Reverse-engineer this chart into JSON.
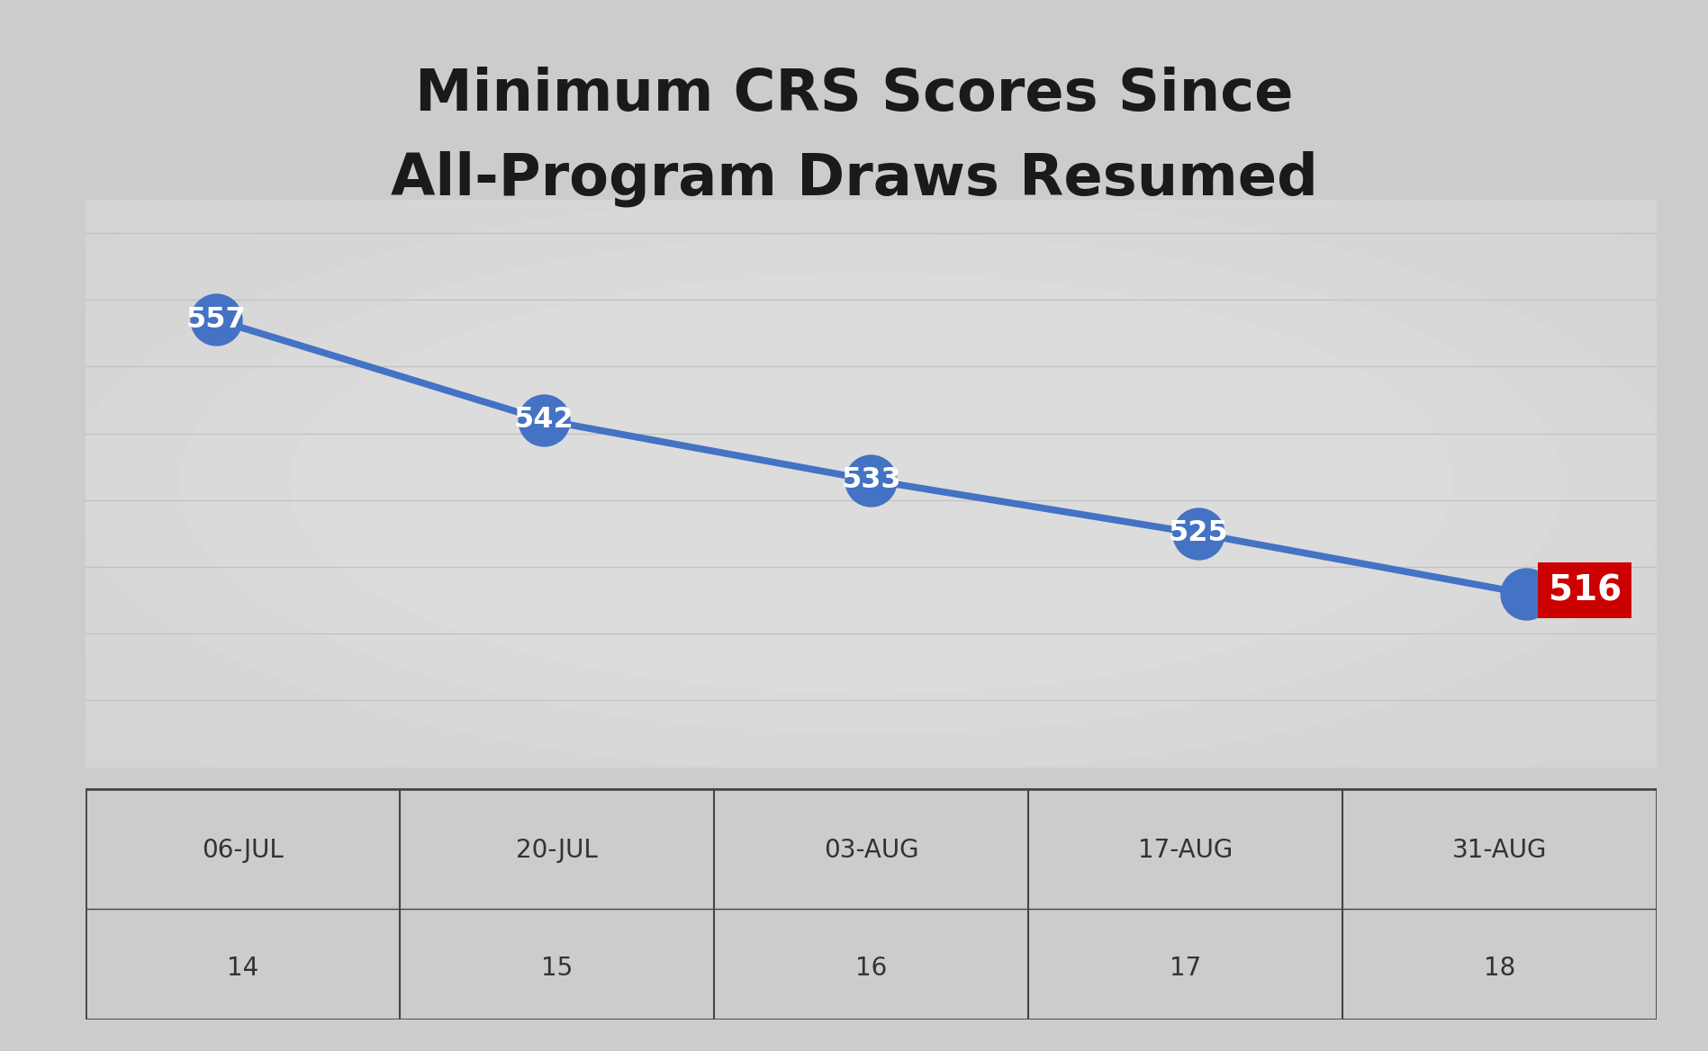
{
  "title_line1": "Minimum CRS Scores Since",
  "title_line2": "All-Program Draws Resumed",
  "x_labels": [
    "06-JUL",
    "20-JUL",
    "03-AUG",
    "17-AUG",
    "31-AUG"
  ],
  "x_sublabels": [
    "14",
    "15",
    "16",
    "17",
    "18"
  ],
  "y_values": [
    557,
    542,
    533,
    525,
    516
  ],
  "x_positions": [
    0,
    1,
    2,
    3,
    4
  ],
  "line_color": "#4472C4",
  "marker_color": "#4472C4",
  "last_label_bg": "#CC0000",
  "label_text_color": "#FFFFFF",
  "title_color": "#1a1a1a",
  "background_color": "#CCCCCC",
  "chart_bg_color": "#DDDDDD",
  "grid_color": "#BBBBBB",
  "table_border_color": "#444444",
  "table_bg_color": "#D8D8D8",
  "title_fontsize": 46,
  "label_fontsize": 22,
  "marker_size": 42,
  "line_width": 5.5,
  "ylim": [
    490,
    575
  ],
  "table_font_size": 20,
  "grid_values": [
    500,
    510,
    520,
    530,
    540,
    550,
    560,
    570
  ]
}
